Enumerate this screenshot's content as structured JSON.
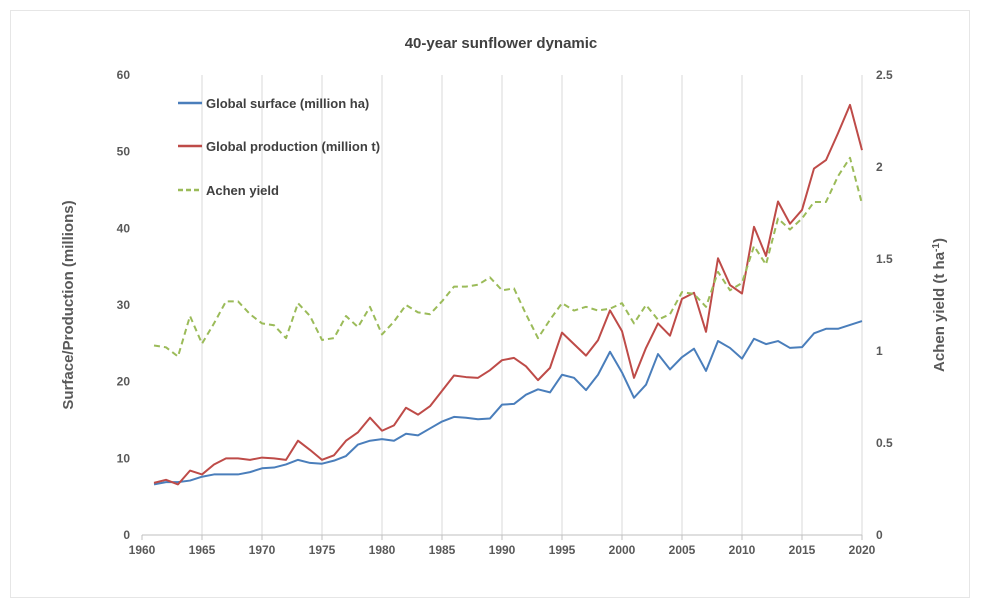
{
  "chart_data": {
    "type": "line",
    "title": "40-year sunflower dynamic",
    "xlabel": "",
    "ylabel": "Surface/Production (millions)",
    "y2label": "Achen yield (t ha-1)",
    "y2label_base": "Achen yield (t ha",
    "y2label_sup": "-1",
    "y2label_close": ")",
    "xlim": [
      1960,
      2020
    ],
    "ylim": [
      0,
      60
    ],
    "y2lim": [
      0,
      2.5
    ],
    "xticks": [
      "1960",
      "1965",
      "1970",
      "1975",
      "1980",
      "1985",
      "1990",
      "1995",
      "2000",
      "2005",
      "2010",
      "2015",
      "2020"
    ],
    "yticks": [
      "0",
      "10",
      "20",
      "30",
      "40",
      "50",
      "60"
    ],
    "y2ticks": [
      "0",
      "0.5",
      "1",
      "1.5",
      "2",
      "2.5"
    ],
    "grid": "vertical",
    "legend_position": "top-left",
    "years": [
      1961,
      1962,
      1963,
      1964,
      1965,
      1966,
      1967,
      1968,
      1969,
      1970,
      1971,
      1972,
      1973,
      1974,
      1975,
      1976,
      1977,
      1978,
      1979,
      1980,
      1981,
      1982,
      1983,
      1984,
      1985,
      1986,
      1987,
      1988,
      1989,
      1990,
      1991,
      1992,
      1993,
      1994,
      1995,
      1996,
      1997,
      1998,
      1999,
      2000,
      2001,
      2002,
      2003,
      2004,
      2005,
      2006,
      2007,
      2008,
      2009,
      2010,
      2011,
      2012,
      2013,
      2014,
      2015,
      2016,
      2017,
      2018,
      2019,
      2020
    ],
    "series": [
      {
        "name": "Global surface (million ha)",
        "axis": "left",
        "color": "#4a7ebb",
        "dash": "solid",
        "values": [
          6.6,
          6.9,
          6.9,
          7.1,
          7.6,
          7.9,
          7.9,
          7.9,
          8.2,
          8.7,
          8.8,
          9.2,
          9.8,
          9.4,
          9.3,
          9.7,
          10.3,
          11.8,
          12.3,
          12.5,
          12.3,
          13.2,
          13.0,
          13.9,
          14.8,
          15.4,
          15.3,
          15.1,
          15.2,
          17.0,
          17.1,
          18.3,
          19.0,
          18.6,
          20.9,
          20.5,
          18.9,
          20.9,
          23.9,
          21.2,
          17.9,
          19.6,
          23.6,
          21.6,
          23.2,
          24.3,
          21.4,
          25.3,
          24.4,
          23.0,
          25.6,
          24.9,
          25.3,
          24.4,
          24.5,
          26.3,
          26.9,
          26.9,
          27.4,
          27.9
        ]
      },
      {
        "name": "Global production (million t)",
        "axis": "left",
        "color": "#be4b48",
        "dash": "solid",
        "values": [
          6.8,
          7.2,
          6.6,
          8.4,
          7.9,
          9.2,
          10.0,
          10.0,
          9.8,
          10.1,
          10.0,
          9.8,
          12.3,
          11.1,
          9.8,
          10.4,
          12.3,
          13.4,
          15.3,
          13.6,
          14.3,
          16.6,
          15.7,
          16.8,
          18.8,
          20.8,
          20.6,
          20.5,
          21.5,
          22.8,
          23.1,
          22.0,
          20.2,
          21.8,
          26.4,
          24.9,
          23.4,
          25.4,
          29.3,
          26.6,
          20.5,
          24.4,
          27.6,
          26.0,
          30.8,
          31.6,
          26.5,
          36.1,
          32.6,
          31.5,
          40.2,
          36.4,
          43.5,
          40.6,
          42.4,
          47.8,
          48.9,
          52.4,
          56.1,
          50.2
        ]
      },
      {
        "name": "Achen yield",
        "axis": "right",
        "color": "#9bbb59",
        "dash": "dashed",
        "values": [
          1.03,
          1.02,
          0.97,
          1.19,
          1.04,
          1.15,
          1.27,
          1.27,
          1.2,
          1.15,
          1.14,
          1.07,
          1.26,
          1.19,
          1.06,
          1.07,
          1.19,
          1.13,
          1.24,
          1.09,
          1.16,
          1.25,
          1.21,
          1.2,
          1.27,
          1.35,
          1.35,
          1.36,
          1.4,
          1.33,
          1.34,
          1.2,
          1.07,
          1.17,
          1.26,
          1.22,
          1.24,
          1.22,
          1.23,
          1.26,
          1.15,
          1.25,
          1.17,
          1.2,
          1.32,
          1.31,
          1.24,
          1.43,
          1.33,
          1.37,
          1.57,
          1.47,
          1.72,
          1.66,
          1.72,
          1.81,
          1.81,
          1.95,
          2.05,
          1.8
        ]
      }
    ]
  }
}
